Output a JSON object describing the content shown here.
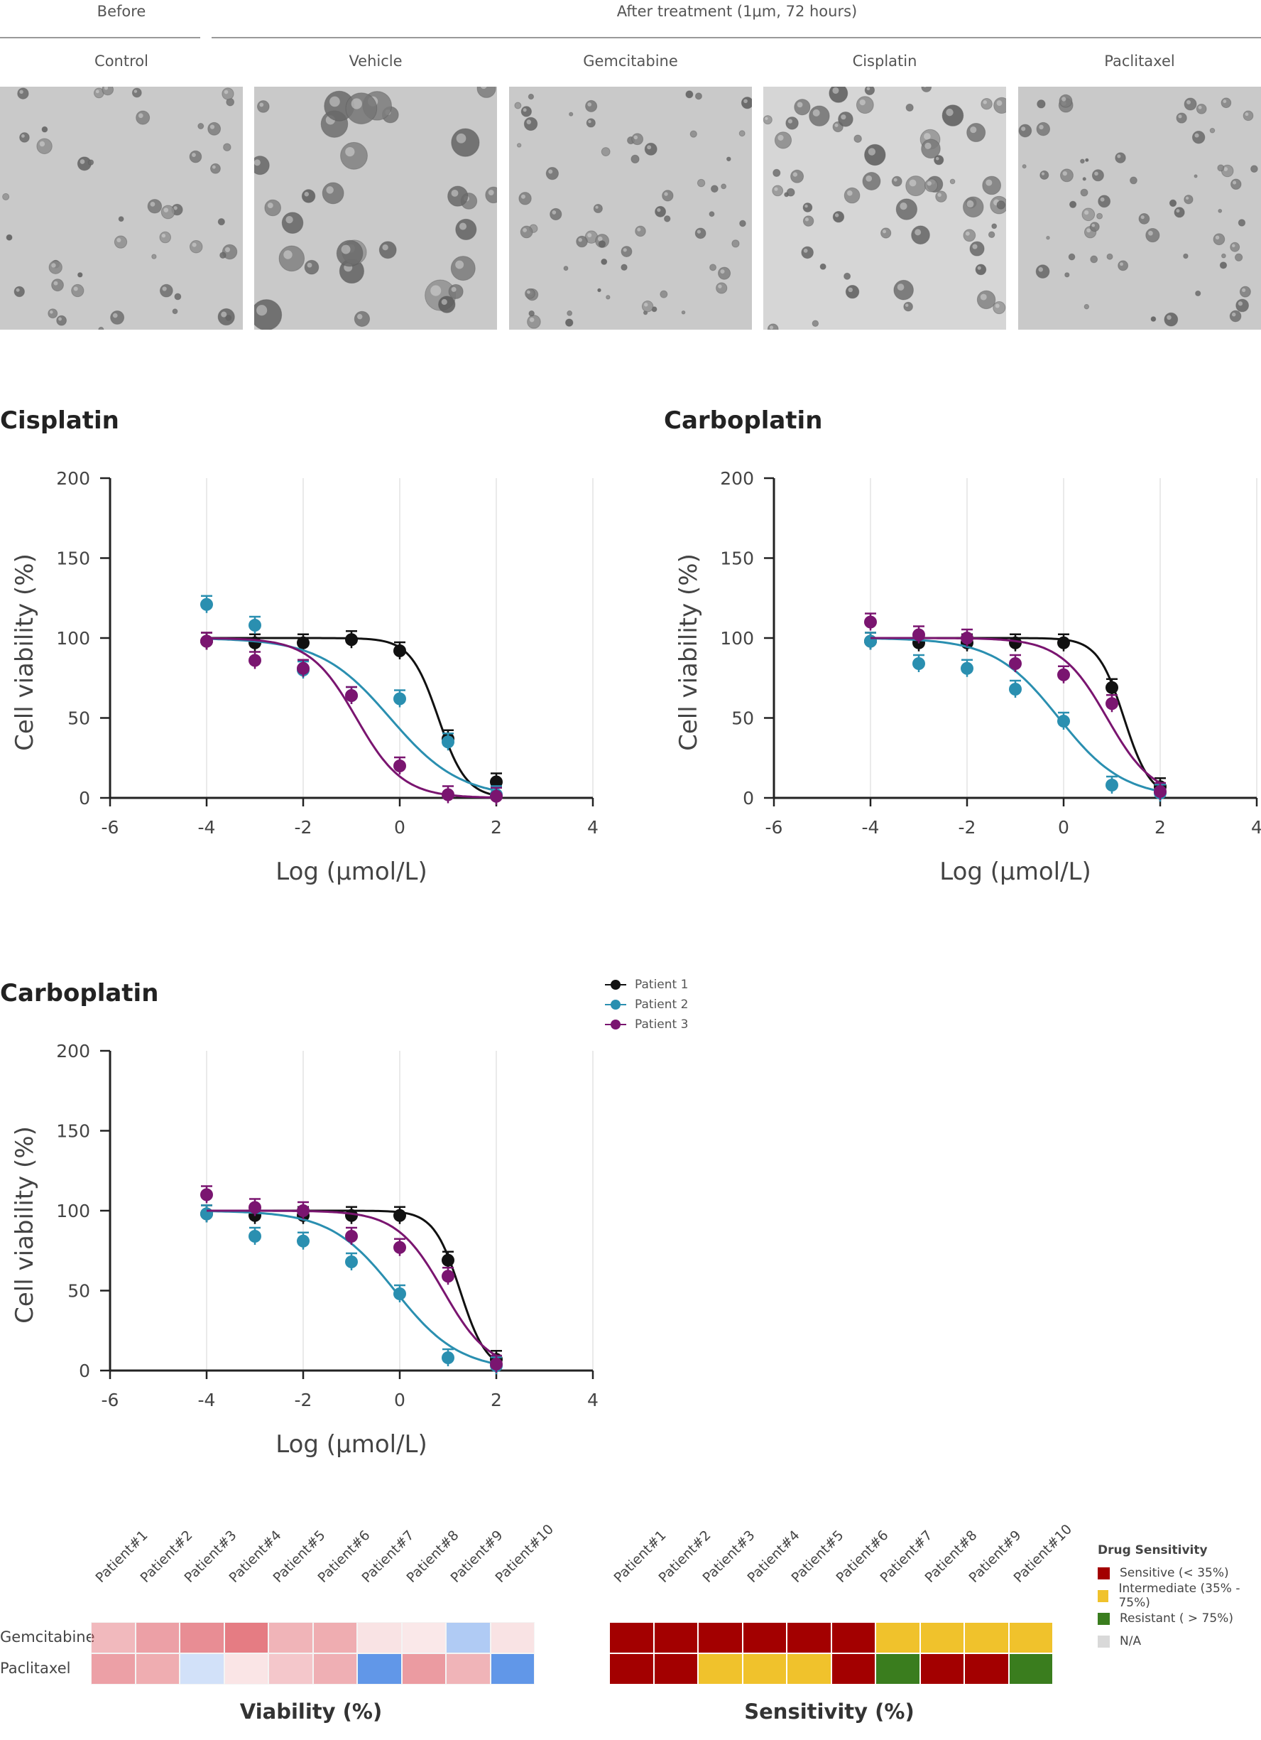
{
  "figure": {
    "header_before": "Before",
    "header_after": "After treatment (1μm, 72 hours)",
    "panels": [
      "Control",
      "Vehicle",
      "Gemcitabine",
      "Cisplatin",
      "Paclitaxel"
    ]
  },
  "colors": {
    "patient1": "#111111",
    "patient2": "#2a8fb0",
    "patient3": "#7a1570"
  },
  "legend": [
    "Patient 1",
    "Patient 2",
    "Patient 3"
  ],
  "chart_data": [
    {
      "type": "scatter",
      "title": "Cisplatin",
      "xlabel": "Log (μmol/L)",
      "ylabel": "Cell viability (%)",
      "xlim": [
        -6,
        4
      ],
      "ylim": [
        0,
        200
      ],
      "xticks": [
        "-6",
        "-4",
        "-2",
        "0",
        "2",
        "4"
      ],
      "yticks": [
        "0",
        "50",
        "100",
        "150",
        "200"
      ],
      "grid": true,
      "series": [
        {
          "name": "Patient 1",
          "x": [
            -4,
            -3,
            -2,
            -1,
            0,
            1,
            2
          ],
          "y": [
            98,
            97,
            97,
            99,
            92,
            37,
            10
          ],
          "fit": {
            "top": 100,
            "bottom": 0,
            "ec50": 0.8,
            "hill": 1.5
          }
        },
        {
          "name": "Patient 2",
          "x": [
            -4,
            -3,
            -2,
            -1,
            0,
            1,
            2
          ],
          "y": [
            121,
            108,
            80,
            64,
            62,
            35,
            2
          ],
          "fit": {
            "top": 100,
            "bottom": 0,
            "ec50": -0.2,
            "hill": 0.6
          }
        },
        {
          "name": "Patient 3",
          "x": [
            -4,
            -3,
            -2,
            -1,
            0,
            1,
            2
          ],
          "y": [
            98,
            86,
            81,
            64,
            20,
            2,
            1
          ],
          "fit": {
            "top": 100,
            "bottom": 0,
            "ec50": -0.9,
            "hill": 0.9
          }
        }
      ]
    },
    {
      "type": "scatter",
      "title": "Carboplatin",
      "xlabel": "Log (μmol/L)",
      "ylabel": "Cell viability (%)",
      "xlim": [
        -6,
        4
      ],
      "ylim": [
        0,
        200
      ],
      "xticks": [
        "-6",
        "-4",
        "-2",
        "0",
        "2",
        "4"
      ],
      "yticks": [
        "0",
        "50",
        "100",
        "150",
        "200"
      ],
      "grid": true,
      "series": [
        {
          "name": "Patient 1",
          "x": [
            -4,
            -3,
            -2,
            -1,
            0,
            1,
            2
          ],
          "y": [
            98,
            97,
            97,
            97,
            97,
            69,
            7
          ],
          "fit": {
            "top": 100,
            "bottom": 0,
            "ec50": 1.25,
            "hill": 1.6
          }
        },
        {
          "name": "Patient 2",
          "x": [
            -4,
            -3,
            -2,
            -1,
            0,
            1,
            2
          ],
          "y": [
            98,
            84,
            81,
            68,
            48,
            8,
            3
          ],
          "fit": {
            "top": 100,
            "bottom": 0,
            "ec50": -0.1,
            "hill": 0.65
          }
        },
        {
          "name": "Patient 3",
          "x": [
            -4,
            -3,
            -2,
            -1,
            0,
            1,
            2
          ],
          "y": [
            110,
            102,
            100,
            84,
            77,
            59,
            4
          ],
          "fit": {
            "top": 100,
            "bottom": 0,
            "ec50": 0.9,
            "hill": 0.9
          }
        }
      ]
    },
    {
      "type": "scatter",
      "title": "Carboplatin",
      "xlabel": "Log (μmol/L)",
      "ylabel": "Cell viability (%)",
      "xlim": [
        -6,
        4
      ],
      "ylim": [
        0,
        200
      ],
      "xticks": [
        "-6",
        "-4",
        "-2",
        "0",
        "2",
        "4"
      ],
      "yticks": [
        "0",
        "50",
        "100",
        "150",
        "200"
      ],
      "grid": true,
      "series": [
        {
          "name": "Patient 1",
          "x": [
            -4,
            -3,
            -2,
            -1,
            0,
            1,
            2
          ],
          "y": [
            98,
            97,
            97,
            97,
            97,
            69,
            7
          ],
          "fit": {
            "top": 100,
            "bottom": 0,
            "ec50": 1.25,
            "hill": 1.6
          }
        },
        {
          "name": "Patient 2",
          "x": [
            -4,
            -3,
            -2,
            -1,
            0,
            1,
            2
          ],
          "y": [
            98,
            84,
            81,
            68,
            48,
            8,
            3
          ],
          "fit": {
            "top": 100,
            "bottom": 0,
            "ec50": -0.1,
            "hill": 0.65
          }
        },
        {
          "name": "Patient 3",
          "x": [
            -4,
            -3,
            -2,
            -1,
            0,
            1,
            2
          ],
          "y": [
            110,
            102,
            100,
            84,
            77,
            59,
            4
          ],
          "fit": {
            "top": 100,
            "bottom": 0,
            "ec50": 0.9,
            "hill": 0.9
          }
        }
      ]
    },
    {
      "type": "heatmap",
      "title": "Viability (%)",
      "columns": [
        "Patient#1",
        "Patient#2",
        "Patient#3",
        "Patient#4",
        "Patient#5",
        "Patient#6",
        "Patient#7",
        "Patient#8",
        "Patient#9",
        "Patient#10"
      ],
      "rows": [
        "Gemcitabine",
        "Paclitaxel"
      ],
      "values": [
        [
          20,
          30,
          38,
          45,
          22,
          25,
          3,
          1,
          -22,
          3
        ],
        [
          30,
          25,
          -8,
          2,
          14,
          24,
          -55,
          32,
          22,
          -55
        ]
      ]
    },
    {
      "type": "heatmap",
      "title": "Sensitivity (%)",
      "columns": [
        "Patient#1",
        "Patient#2",
        "Patient#3",
        "Patient#4",
        "Patient#5",
        "Patient#6",
        "Patient#7",
        "Patient#8",
        "Patient#9",
        "Patient#10"
      ],
      "rows": [
        "Gemcitabine",
        "Paclitaxel"
      ],
      "categories": [
        [
          "S",
          "S",
          "S",
          "S",
          "S",
          "S",
          "I",
          "I",
          "I",
          "I"
        ],
        [
          "S",
          "S",
          "I",
          "I",
          "I",
          "S",
          "R",
          "S",
          "S",
          "R"
        ]
      ],
      "key_title": "Drug Sensitivity",
      "key": [
        {
          "code": "S",
          "label": "Sensitive (< 35%)",
          "color": "#a30000"
        },
        {
          "code": "I",
          "label": "Intermediate (35% - 75%)",
          "color": "#f0c22c"
        },
        {
          "code": "R",
          "label": "Resistant ( > 75%)",
          "color": "#3a7d1e"
        },
        {
          "code": "NA",
          "label": "N/A",
          "color": "#d9d9d9"
        }
      ]
    }
  ]
}
